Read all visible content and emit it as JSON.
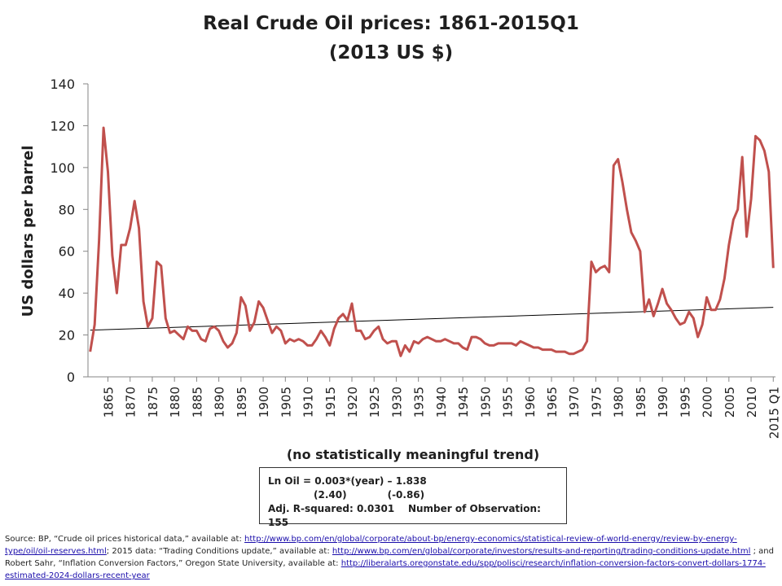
{
  "chart_data": {
    "type": "line",
    "title_line1": "Real Crude Oil prices: 1861-2015Q1",
    "title_line2": "(2013 US $)",
    "ylabel": "US dollars per barrel",
    "xlabel": "(no statistically  meaningful  trend)",
    "ylim": [
      0,
      140
    ],
    "yticks": [
      0,
      20,
      40,
      60,
      80,
      100,
      120,
      140
    ],
    "xlim": [
      1860.5,
      2015.5
    ],
    "xtick_labels": [
      "1865",
      "1870",
      "1875",
      "1880",
      "1885",
      "1890",
      "1895",
      "1900",
      "1905",
      "1910",
      "1915",
      "1920",
      "1925",
      "1930",
      "1935",
      "1940",
      "1945",
      "1950",
      "1955",
      "1960",
      "1965",
      "1970",
      "1975",
      "1980",
      "1985",
      "1990",
      "1995",
      "2000",
      "2005",
      "2010",
      "2015 Q1"
    ],
    "xtick_values": [
      1865,
      1870,
      1875,
      1880,
      1885,
      1890,
      1895,
      1900,
      1905,
      1910,
      1915,
      1920,
      1925,
      1930,
      1935,
      1940,
      1945,
      1950,
      1955,
      1960,
      1965,
      1970,
      1975,
      1980,
      1985,
      1990,
      1995,
      2000,
      2005,
      2010,
      2015
    ],
    "series_color": "#c0504d",
    "trend_color": "#000000",
    "x": [
      1861,
      1862,
      1863,
      1864,
      1865,
      1866,
      1867,
      1868,
      1869,
      1870,
      1871,
      1872,
      1873,
      1874,
      1875,
      1876,
      1877,
      1878,
      1879,
      1880,
      1881,
      1882,
      1883,
      1884,
      1885,
      1886,
      1887,
      1888,
      1889,
      1890,
      1891,
      1892,
      1893,
      1894,
      1895,
      1896,
      1897,
      1898,
      1899,
      1900,
      1901,
      1902,
      1903,
      1904,
      1905,
      1906,
      1907,
      1908,
      1909,
      1910,
      1911,
      1912,
      1913,
      1914,
      1915,
      1916,
      1917,
      1918,
      1919,
      1920,
      1921,
      1922,
      1923,
      1924,
      1925,
      1926,
      1927,
      1928,
      1929,
      1930,
      1931,
      1932,
      1933,
      1934,
      1935,
      1936,
      1937,
      1938,
      1939,
      1940,
      1941,
      1942,
      1943,
      1944,
      1945,
      1946,
      1947,
      1948,
      1949,
      1950,
      1951,
      1952,
      1953,
      1954,
      1955,
      1956,
      1957,
      1958,
      1959,
      1960,
      1961,
      1962,
      1963,
      1964,
      1965,
      1966,
      1967,
      1968,
      1969,
      1970,
      1971,
      1972,
      1973,
      1974,
      1975,
      1976,
      1977,
      1978,
      1979,
      1980,
      1981,
      1982,
      1983,
      1984,
      1985,
      1986,
      1987,
      1988,
      1989,
      1990,
      1991,
      1992,
      1993,
      1994,
      1995,
      1996,
      1997,
      1998,
      1999,
      2000,
      2001,
      2002,
      2003,
      2004,
      2005,
      2006,
      2007,
      2008,
      2009,
      2010,
      2011,
      2012,
      2013,
      2014,
      2015
    ],
    "values": [
      12,
      25,
      65,
      119,
      98,
      58,
      40,
      63,
      63,
      71,
      84,
      71,
      36,
      24,
      28,
      55,
      53,
      28,
      21,
      22,
      20,
      18,
      24,
      22,
      22,
      18,
      17,
      23,
      24,
      22,
      17,
      14,
      16,
      21,
      38,
      34,
      22,
      26,
      36,
      33,
      27,
      21,
      24,
      22,
      16,
      18,
      17,
      18,
      17,
      15,
      15,
      18,
      22,
      19,
      15,
      23,
      28,
      30,
      27,
      35,
      22,
      22,
      18,
      19,
      22,
      24,
      18,
      16,
      17,
      17,
      10,
      15,
      12,
      17,
      16,
      18,
      19,
      18,
      17,
      17,
      18,
      17,
      16,
      16,
      14,
      13,
      19,
      19,
      18,
      16,
      15,
      15,
      16,
      16,
      16,
      16,
      15,
      17,
      16,
      15,
      14,
      14,
      13,
      13,
      13,
      12,
      12,
      12,
      11,
      11,
      12,
      13,
      17,
      55,
      50,
      52,
      53,
      50,
      101,
      104,
      93,
      80,
      69,
      65,
      60,
      31,
      37,
      29,
      35,
      42,
      35,
      32,
      28,
      25,
      26,
      31,
      28,
      19,
      25,
      38,
      32,
      32,
      37,
      47,
      63,
      75,
      80,
      105,
      67,
      85,
      115,
      113,
      108,
      98,
      52
    ],
    "trend_start": [
      1861,
      22.3
    ],
    "trend_end": [
      2015,
      33.2
    ]
  },
  "regression": {
    "line1": "Ln Oil = 0.003*(year) – 1.838",
    "t1": "(2.40)",
    "t2": "(-0.86)",
    "line3a": "Adj. R-squared: 0.0301",
    "line3b": "Number of Observation: 155"
  },
  "source": {
    "p1": "Source: BP, “Crude oil prices historical data,” available at: ",
    "link1": "http://www.bp.com/en/global/corporate/about-bp/energy-economics/statistical-review-of-world-energy/review-by-energy-type/oil/oil-reserves.html",
    "p2": "; 2015 data: “Trading Conditions update,” available at: ",
    "link2": "http://www.bp.com/en/global/corporate/investors/results-and-reporting/trading-conditions-update.html",
    "p3": " ; and Robert Sahr, “Inflation Conversion Factors,” Oregon State University, available at: ",
    "link3": "http://liberalarts.oregonstate.edu/spp/polisci/research/inflation-conversion-factors-convert-dollars-1774-estimated-2024-dollars-recent-year"
  }
}
